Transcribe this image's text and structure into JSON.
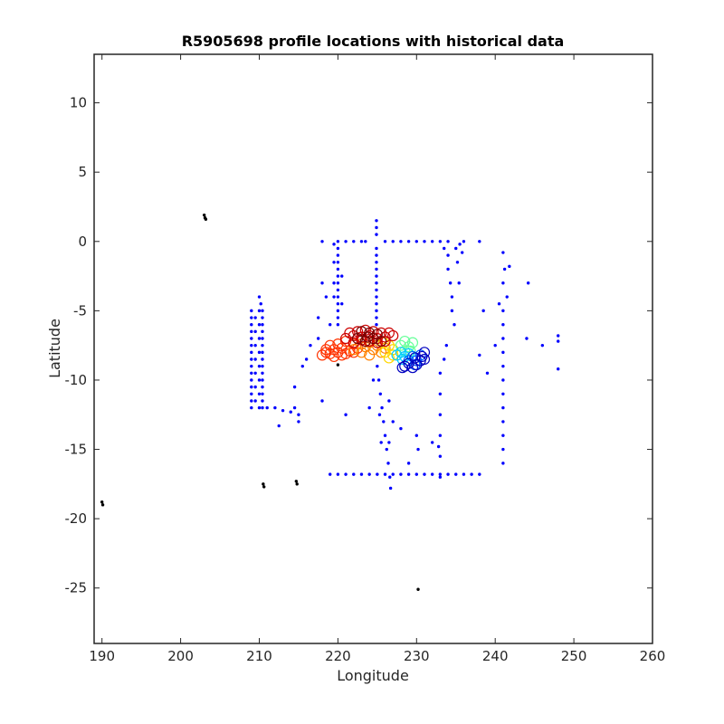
{
  "chart_data": {
    "type": "scatter",
    "title": "R5905698 profile locations with historical data",
    "xlabel": "Longitude",
    "ylabel": "Latitude",
    "xlim": [
      189,
      260
    ],
    "ylim": [
      -29,
      13.5
    ],
    "xticks": [
      190,
      200,
      210,
      220,
      230,
      240,
      250,
      260
    ],
    "yticks": [
      10,
      5,
      0,
      -5,
      -10,
      -15,
      -20,
      -25
    ],
    "grid": false,
    "series": [
      {
        "color": "#0000ff",
        "marker": "dot",
        "points": [
          [
            220,
            0
          ],
          [
            220,
            -0.5
          ],
          [
            220,
            -1
          ],
          [
            220,
            -1.5
          ],
          [
            220,
            -2
          ],
          [
            220,
            -2.5
          ],
          [
            220,
            -3
          ],
          [
            220,
            -3.5
          ],
          [
            220,
            -4
          ],
          [
            220,
            -4.5
          ],
          [
            220,
            -5
          ],
          [
            220,
            -5.5
          ],
          [
            220,
            -6
          ],
          [
            219.5,
            -0.2
          ],
          [
            219.5,
            -1.5
          ],
          [
            219.5,
            -3
          ],
          [
            219.5,
            -4
          ],
          [
            220.5,
            -2.5
          ],
          [
            220.5,
            -4.5
          ],
          [
            218,
            0
          ],
          [
            221,
            0
          ],
          [
            222,
            0
          ],
          [
            223,
            0
          ],
          [
            223.5,
            0
          ],
          [
            226,
            0
          ],
          [
            227,
            0
          ],
          [
            228,
            0
          ],
          [
            229,
            0
          ],
          [
            230,
            0
          ],
          [
            231,
            0
          ],
          [
            232,
            0
          ],
          [
            233,
            0
          ],
          [
            234,
            0
          ],
          [
            236,
            0
          ],
          [
            238,
            0
          ],
          [
            224.9,
            1.5
          ],
          [
            224.9,
            1
          ],
          [
            224.9,
            0.5
          ],
          [
            224.9,
            -0.5
          ],
          [
            224.9,
            -1
          ],
          [
            224.9,
            -1.5
          ],
          [
            224.9,
            -2
          ],
          [
            224.9,
            -2.5
          ],
          [
            224.9,
            -3
          ],
          [
            224.9,
            -3.5
          ],
          [
            224.9,
            -4
          ],
          [
            224.9,
            -4.5
          ],
          [
            224.9,
            -5
          ],
          [
            224.9,
            -5.5
          ],
          [
            224.9,
            -6
          ],
          [
            225,
            -9
          ],
          [
            225.2,
            -10
          ],
          [
            225.4,
            -11
          ],
          [
            225.6,
            -12
          ],
          [
            225.8,
            -13
          ],
          [
            226,
            -14
          ],
          [
            226.2,
            -15
          ],
          [
            226.4,
            -16
          ],
          [
            226.6,
            -17
          ],
          [
            226.7,
            -17.8
          ],
          [
            225.3,
            -12.5
          ],
          [
            225.5,
            -14.5
          ],
          [
            226.5,
            -11.5
          ],
          [
            224.5,
            -10
          ],
          [
            219,
            -16.8
          ],
          [
            220,
            -16.8
          ],
          [
            221,
            -16.8
          ],
          [
            222,
            -16.8
          ],
          [
            223,
            -16.8
          ],
          [
            224,
            -16.8
          ],
          [
            225,
            -16.8
          ],
          [
            226,
            -16.8
          ],
          [
            227,
            -16.8
          ],
          [
            228,
            -16.8
          ],
          [
            229,
            -16.8
          ],
          [
            230,
            -16.8
          ],
          [
            231,
            -16.8
          ],
          [
            232,
            -16.8
          ],
          [
            233,
            -16.8
          ],
          [
            234,
            -16.8
          ],
          [
            235,
            -16.8
          ],
          [
            236,
            -16.8
          ],
          [
            237,
            -16.8
          ],
          [
            238,
            -16.8
          ],
          [
            234,
            -1
          ],
          [
            234,
            -2
          ],
          [
            234.3,
            -3
          ],
          [
            234.5,
            -4
          ],
          [
            234.5,
            -5
          ],
          [
            234.8,
            -6
          ],
          [
            235,
            -0.5
          ],
          [
            235.2,
            -1.5
          ],
          [
            235.4,
            -3
          ],
          [
            235.5,
            -0.2
          ],
          [
            235.8,
            -0.8
          ],
          [
            233.5,
            -0.5
          ],
          [
            233.8,
            -7.5
          ],
          [
            233.5,
            -8.5
          ],
          [
            233,
            -9.5
          ],
          [
            233,
            -11
          ],
          [
            233,
            -12.5
          ],
          [
            233,
            -14
          ],
          [
            233,
            -15.5
          ],
          [
            233,
            -17
          ],
          [
            232.8,
            -14.8
          ],
          [
            232,
            -14.5
          ],
          [
            230,
            -14
          ],
          [
            230.2,
            -15
          ],
          [
            229,
            -16
          ],
          [
            241,
            -0.8
          ],
          [
            241.2,
            -2
          ],
          [
            241,
            -3
          ],
          [
            241.5,
            -4
          ],
          [
            241,
            -5
          ],
          [
            241,
            -6
          ],
          [
            241,
            -7
          ],
          [
            241,
            -8
          ],
          [
            241,
            -9
          ],
          [
            241,
            -10
          ],
          [
            241,
            -11
          ],
          [
            241,
            -12
          ],
          [
            241,
            -13
          ],
          [
            241,
            -14
          ],
          [
            241,
            -15
          ],
          [
            241,
            -16
          ],
          [
            240.5,
            -4.5
          ],
          [
            240,
            -7.5
          ],
          [
            239,
            -9.5
          ],
          [
            238.5,
            -5
          ],
          [
            244,
            -7
          ],
          [
            244.2,
            -3
          ],
          [
            241.8,
            -1.8
          ],
          [
            248,
            -6.8
          ],
          [
            248,
            -7.2
          ],
          [
            248,
            -9.2
          ],
          [
            246,
            -7.5
          ],
          [
            238,
            -8.2
          ],
          [
            210,
            -4
          ],
          [
            210.2,
            -4.5
          ],
          [
            210.4,
            -5
          ],
          [
            210.4,
            -5.5
          ],
          [
            210.4,
            -6
          ],
          [
            210.4,
            -6.5
          ],
          [
            210.4,
            -7
          ],
          [
            210.4,
            -7.5
          ],
          [
            210.4,
            -8
          ],
          [
            210.4,
            -8.5
          ],
          [
            210.4,
            -9
          ],
          [
            210.4,
            -9.5
          ],
          [
            210.4,
            -10
          ],
          [
            210.4,
            -10.5
          ],
          [
            210.4,
            -11
          ],
          [
            210.4,
            -11.5
          ],
          [
            210.4,
            -12
          ],
          [
            209,
            -5
          ],
          [
            209,
            -5.5
          ],
          [
            209,
            -6
          ],
          [
            209,
            -6.5
          ],
          [
            209,
            -7
          ],
          [
            209,
            -7.5
          ],
          [
            209,
            -8
          ],
          [
            209,
            -8.5
          ],
          [
            209,
            -9
          ],
          [
            209,
            -9.5
          ],
          [
            209,
            -10
          ],
          [
            209,
            -10.5
          ],
          [
            209,
            -11
          ],
          [
            209,
            -11.5
          ],
          [
            209,
            -12
          ],
          [
            210,
            -5
          ],
          [
            210,
            -6
          ],
          [
            210,
            -7
          ],
          [
            210,
            -8
          ],
          [
            210,
            -9
          ],
          [
            210,
            -10
          ],
          [
            210,
            -11
          ],
          [
            210,
            -12
          ],
          [
            209.5,
            -5.5
          ],
          [
            209.5,
            -6.5
          ],
          [
            209.5,
            -7.5
          ],
          [
            209.5,
            -8.5
          ],
          [
            209.5,
            -9.5
          ],
          [
            209.5,
            -10.5
          ],
          [
            209.5,
            -11.5
          ],
          [
            211,
            -12
          ],
          [
            212,
            -12
          ],
          [
            213,
            -12.2
          ],
          [
            214,
            -12.3
          ],
          [
            214.5,
            -12
          ],
          [
            214.5,
            -10.5
          ],
          [
            215,
            -12.5
          ],
          [
            212.5,
            -13.3
          ],
          [
            215,
            -13
          ],
          [
            215.5,
            -9
          ],
          [
            216,
            -8.5
          ],
          [
            216.5,
            -7.5
          ],
          [
            217.5,
            -7
          ],
          [
            217.5,
            -5.5
          ],
          [
            218.5,
            -4
          ],
          [
            218,
            -3
          ],
          [
            219,
            -6
          ],
          [
            221,
            -12.5
          ],
          [
            218,
            -11.5
          ],
          [
            224,
            -12
          ],
          [
            228,
            -13.5
          ],
          [
            227,
            -13
          ],
          [
            226.5,
            -14.5
          ]
        ]
      },
      {
        "color": "#000000",
        "marker": "dot",
        "points": [
          [
            203,
            1.9
          ],
          [
            203.1,
            1.7
          ],
          [
            203.2,
            1.6
          ],
          [
            190,
            -18.8
          ],
          [
            190.1,
            -19
          ],
          [
            210.5,
            -17.5
          ],
          [
            210.6,
            -17.7
          ],
          [
            214.7,
            -17.3
          ],
          [
            214.8,
            -17.5
          ],
          [
            230.2,
            -25.1
          ],
          [
            220,
            -8.9
          ]
        ]
      },
      {
        "color": "#ff3300",
        "marker": "o",
        "points": [
          [
            218,
            -8.2
          ],
          [
            218.5,
            -8
          ],
          [
            219,
            -8.1
          ],
          [
            219.5,
            -7.8
          ],
          [
            220,
            -8
          ],
          [
            220.5,
            -7.7
          ],
          [
            221,
            -8.1
          ],
          [
            221.5,
            -7.9
          ],
          [
            222,
            -8
          ],
          [
            222.5,
            -7.7
          ],
          [
            219,
            -7.5
          ],
          [
            220,
            -7.4
          ],
          [
            221,
            -7.2
          ],
          [
            218.5,
            -7.8
          ],
          [
            222,
            -7.4
          ],
          [
            220.5,
            -8.2
          ],
          [
            219.5,
            -8.3
          ]
        ]
      },
      {
        "color": "#ff8000",
        "marker": "o",
        "points": [
          [
            222,
            -7.8
          ],
          [
            223,
            -8
          ],
          [
            223.5,
            -7.6
          ],
          [
            224,
            -8.2
          ],
          [
            224.5,
            -7.8
          ],
          [
            225,
            -7.5
          ],
          [
            225.5,
            -8
          ],
          [
            226,
            -7.7
          ],
          [
            224,
            -7.3
          ],
          [
            223,
            -7.4
          ]
        ]
      },
      {
        "color": "#ffd700",
        "marker": "o",
        "points": [
          [
            226,
            -8
          ],
          [
            226.5,
            -7.5
          ],
          [
            227,
            -8.2
          ],
          [
            227,
            -7.8
          ],
          [
            226.5,
            -8.4
          ],
          [
            225.8,
            -7.3
          ]
        ]
      },
      {
        "color": "#cc0000",
        "marker": "o",
        "points": [
          [
            221,
            -7
          ],
          [
            221.5,
            -6.6
          ],
          [
            222,
            -6.8
          ],
          [
            222.5,
            -6.5
          ],
          [
            223,
            -6.9
          ],
          [
            223.5,
            -6.4
          ],
          [
            224,
            -6.8
          ],
          [
            224.5,
            -6.5
          ],
          [
            225,
            -7
          ],
          [
            225.5,
            -6.6
          ],
          [
            226,
            -6.9
          ],
          [
            226.5,
            -6.6
          ],
          [
            227,
            -6.8
          ],
          [
            222,
            -7.3
          ],
          [
            223,
            -7.1
          ],
          [
            224,
            -7.2
          ],
          [
            225,
            -7.3
          ],
          [
            226,
            -7.2
          ]
        ]
      },
      {
        "color": "#7a0000",
        "marker": "o",
        "points": [
          [
            222.5,
            -7
          ],
          [
            223,
            -6.5
          ],
          [
            223.5,
            -7.2
          ],
          [
            224,
            -6.6
          ],
          [
            224.5,
            -7
          ],
          [
            225,
            -6.7
          ],
          [
            225.5,
            -7.2
          ],
          [
            223.8,
            -6.9
          ]
        ]
      },
      {
        "color": "#66ff99",
        "marker": "o",
        "points": [
          [
            228,
            -7.5
          ],
          [
            228.5,
            -7.2
          ],
          [
            229,
            -7.6
          ],
          [
            229.5,
            -7.3
          ],
          [
            228.5,
            -7.9
          ],
          [
            229.2,
            -7.9
          ]
        ]
      },
      {
        "color": "#00ccff",
        "marker": "o",
        "points": [
          [
            227.5,
            -8.2
          ],
          [
            228,
            -8
          ],
          [
            228.5,
            -8.3
          ],
          [
            229,
            -8.1
          ],
          [
            228.2,
            -8.5
          ]
        ]
      },
      {
        "color": "#0060ff",
        "marker": "o",
        "points": [
          [
            229,
            -8.6
          ],
          [
            229.5,
            -8.3
          ],
          [
            230,
            -8.6
          ],
          [
            230.5,
            -8.2
          ],
          [
            229.8,
            -8.9
          ]
        ]
      },
      {
        "color": "#0000c0",
        "marker": "o",
        "points": [
          [
            228.5,
            -9
          ],
          [
            229,
            -8.8
          ],
          [
            229.5,
            -9.1
          ],
          [
            230,
            -8.9
          ],
          [
            230.5,
            -8.6
          ],
          [
            231,
            -8.5
          ],
          [
            231,
            -8
          ],
          [
            230.7,
            -8.3
          ],
          [
            228.2,
            -9.1
          ],
          [
            229.8,
            -8.4
          ]
        ]
      }
    ]
  }
}
